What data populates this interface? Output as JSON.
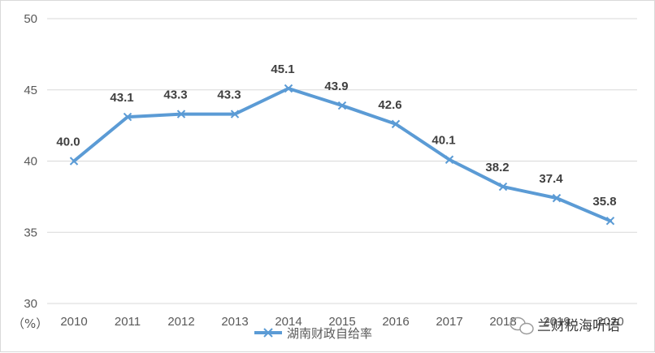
{
  "chart_data": {
    "type": "line",
    "x": [
      "2010",
      "2011",
      "2012",
      "2013",
      "2014",
      "2015",
      "2016",
      "2017",
      "2018",
      "2019",
      "2020"
    ],
    "series": [
      {
        "name": "湖南财政自给率",
        "values": [
          40.0,
          43.1,
          43.3,
          43.3,
          45.1,
          43.9,
          42.6,
          40.1,
          38.2,
          37.4,
          35.8
        ],
        "labels": [
          "40.0",
          "43.1",
          "43.3",
          "43.3",
          "45.1",
          "43.9",
          "42.6",
          "40.1",
          "38.2",
          "37.4",
          "35.8"
        ],
        "color": "#5b9bd5",
        "marker": "x"
      }
    ],
    "yunit": "（%）",
    "ylim": [
      30,
      50
    ],
    "yticks": [
      "30",
      "35",
      "40",
      "45",
      "50"
    ],
    "grid": true,
    "legend": "bottom-center"
  },
  "watermark": {
    "text": "兰财税海听语",
    "icon": "wechat-icon"
  }
}
